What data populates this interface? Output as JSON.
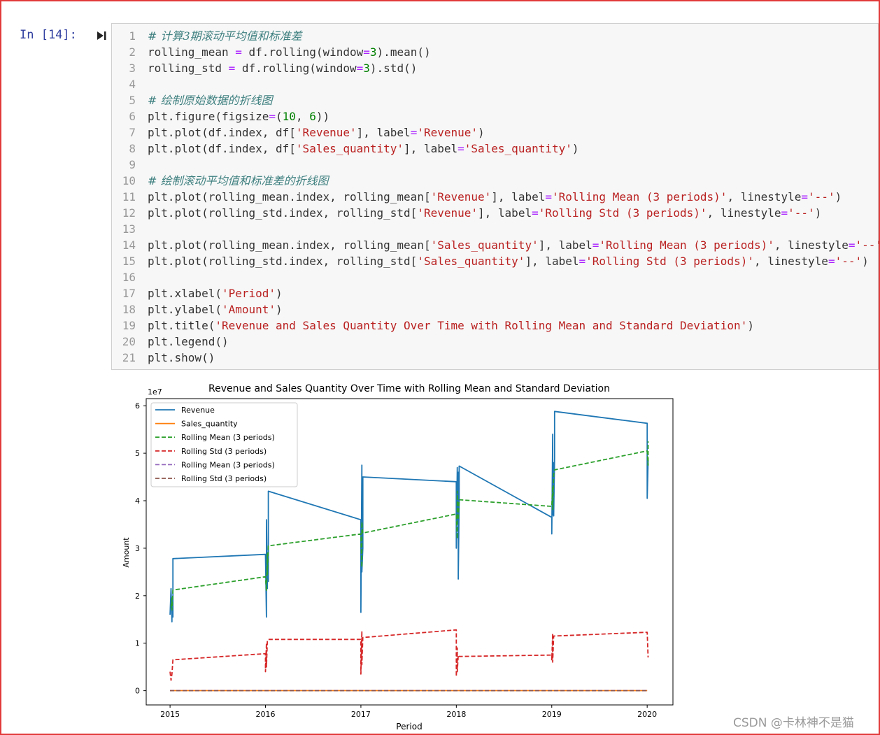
{
  "cell": {
    "prompt": "In  [14]:",
    "run_icon": "run-cell-icon",
    "line_numbers": [
      "1",
      "2",
      "3",
      "4",
      "5",
      "6",
      "7",
      "8",
      "9",
      "10",
      "11",
      "12",
      "13",
      "14",
      "15",
      "16",
      "17",
      "18",
      "19",
      "20",
      "21"
    ],
    "lines": [
      [
        {
          "t": "# 计算3期滚动平均值和标准差",
          "c": "comment"
        }
      ],
      [
        {
          "t": "rolling_mean "
        },
        {
          "t": "=",
          "c": "op"
        },
        {
          "t": " df.rolling(window"
        },
        {
          "t": "=",
          "c": "op"
        },
        {
          "t": "3",
          "c": "num"
        },
        {
          "t": ").mean()"
        }
      ],
      [
        {
          "t": "rolling_std "
        },
        {
          "t": "=",
          "c": "op"
        },
        {
          "t": " df.rolling(window"
        },
        {
          "t": "=",
          "c": "op"
        },
        {
          "t": "3",
          "c": "num"
        },
        {
          "t": ").std()"
        }
      ],
      [],
      [
        {
          "t": "# 绘制原始数据的折线图",
          "c": "comment"
        }
      ],
      [
        {
          "t": "plt.figure(figsize"
        },
        {
          "t": "=",
          "c": "op"
        },
        {
          "t": "("
        },
        {
          "t": "10",
          "c": "num"
        },
        {
          "t": ", "
        },
        {
          "t": "6",
          "c": "num"
        },
        {
          "t": "))"
        }
      ],
      [
        {
          "t": "plt.plot(df.index, df["
        },
        {
          "t": "'Revenue'",
          "c": "str"
        },
        {
          "t": "], label"
        },
        {
          "t": "=",
          "c": "op"
        },
        {
          "t": "'Revenue'",
          "c": "str"
        },
        {
          "t": ")"
        }
      ],
      [
        {
          "t": "plt.plot(df.index, df["
        },
        {
          "t": "'Sales_quantity'",
          "c": "str"
        },
        {
          "t": "], label"
        },
        {
          "t": "=",
          "c": "op"
        },
        {
          "t": "'Sales_quantity'",
          "c": "str"
        },
        {
          "t": ")"
        }
      ],
      [],
      [
        {
          "t": "# 绘制滚动平均值和标准差的折线图",
          "c": "comment"
        }
      ],
      [
        {
          "t": "plt.plot(rolling_mean.index, rolling_mean["
        },
        {
          "t": "'Revenue'",
          "c": "str"
        },
        {
          "t": "], label"
        },
        {
          "t": "=",
          "c": "op"
        },
        {
          "t": "'Rolling Mean (3 periods)'",
          "c": "str"
        },
        {
          "t": ", linestyle"
        },
        {
          "t": "=",
          "c": "op"
        },
        {
          "t": "'--'",
          "c": "str"
        },
        {
          "t": ")"
        }
      ],
      [
        {
          "t": "plt.plot(rolling_std.index, rolling_std["
        },
        {
          "t": "'Revenue'",
          "c": "str"
        },
        {
          "t": "], label"
        },
        {
          "t": "=",
          "c": "op"
        },
        {
          "t": "'Rolling Std (3 periods)'",
          "c": "str"
        },
        {
          "t": ", linestyle"
        },
        {
          "t": "=",
          "c": "op"
        },
        {
          "t": "'--'",
          "c": "str"
        },
        {
          "t": ")"
        }
      ],
      [],
      [
        {
          "t": "plt.plot(rolling_mean.index, rolling_mean["
        },
        {
          "t": "'Sales_quantity'",
          "c": "str"
        },
        {
          "t": "], label"
        },
        {
          "t": "=",
          "c": "op"
        },
        {
          "t": "'Rolling Mean (3 periods)'",
          "c": "str"
        },
        {
          "t": ", linestyle"
        },
        {
          "t": "=",
          "c": "op"
        },
        {
          "t": "'--'",
          "c": "str"
        },
        {
          "t": ")"
        }
      ],
      [
        {
          "t": "plt.plot(rolling_std.index, rolling_std["
        },
        {
          "t": "'Sales_quantity'",
          "c": "str"
        },
        {
          "t": "], label"
        },
        {
          "t": "=",
          "c": "op"
        },
        {
          "t": "'Rolling Std (3 periods)'",
          "c": "str"
        },
        {
          "t": ", linestyle"
        },
        {
          "t": "=",
          "c": "op"
        },
        {
          "t": "'--'",
          "c": "str"
        },
        {
          "t": ")"
        }
      ],
      [],
      [
        {
          "t": "plt.xlabel("
        },
        {
          "t": "'Period'",
          "c": "str"
        },
        {
          "t": ")"
        }
      ],
      [
        {
          "t": "plt.ylabel("
        },
        {
          "t": "'Amount'",
          "c": "str"
        },
        {
          "t": ")"
        }
      ],
      [
        {
          "t": "plt.title("
        },
        {
          "t": "'Revenue and Sales Quantity Over Time with Rolling Mean and Standard Deviation'",
          "c": "str"
        },
        {
          "t": ")"
        }
      ],
      [
        {
          "t": "plt.legend()"
        }
      ],
      [
        {
          "t": "plt.show()"
        }
      ]
    ]
  },
  "chart_data": {
    "type": "line",
    "title": "Revenue and Sales Quantity Over Time with Rolling Mean and Standard Deviation",
    "xlabel": "Period",
    "ylabel": "Amount",
    "y_offset_label": "1e7",
    "xlim": [
      2014.75,
      2020.27
    ],
    "ylim": [
      -0.3,
      6.15
    ],
    "x_ticks": [
      2015,
      2016,
      2017,
      2018,
      2019,
      2020
    ],
    "x_tick_labels": [
      "2015",
      "2016",
      "2017",
      "2018",
      "2019",
      "2020"
    ],
    "y_ticks": [
      0,
      1,
      2,
      3,
      4,
      5,
      6
    ],
    "y_tick_labels": [
      "0",
      "1",
      "2",
      "3",
      "4",
      "5",
      "6"
    ],
    "grid": false,
    "legend_position": "upper-left",
    "series": [
      {
        "name": "Revenue",
        "color": "#1f77b4",
        "dash": false,
        "x": [
          2015.0,
          2015.01,
          2015.02,
          2015.02,
          2015.03,
          2015.03,
          2016.0,
          2016.01,
          2016.01,
          2016.02,
          2016.02,
          2016.03,
          2016.03,
          2017.0,
          2017.0,
          2017.01,
          2017.01,
          2017.02,
          2017.02,
          2018.0,
          2018.0,
          2018.01,
          2018.01,
          2018.02,
          2018.02,
          2018.03,
          2018.03,
          2019.0,
          2019.0,
          2019.01,
          2019.01,
          2019.02,
          2019.02,
          2019.03,
          2019.03,
          2020.0,
          2020.0,
          2020.01
        ],
        "y": [
          1.6,
          2.15,
          1.45,
          1.9,
          1.55,
          2.78,
          2.87,
          1.55,
          3.6,
          2.15,
          2.9,
          2.3,
          4.2,
          3.6,
          1.65,
          4.75,
          2.5,
          3.0,
          4.5,
          4.4,
          3.0,
          4.7,
          3.6,
          4.6,
          2.35,
          4.0,
          4.73,
          3.65,
          3.3,
          5.4,
          3.7,
          4.8,
          3.68,
          4.9,
          5.88,
          5.63,
          4.05,
          4.85
        ]
      },
      {
        "name": "Sales_quantity",
        "color": "#ff7f0e",
        "dash": false,
        "x": [
          2015.0,
          2020.0
        ],
        "y": [
          0.002,
          0.002
        ]
      },
      {
        "name": "Rolling Mean (3 periods)",
        "color": "#2ca02c",
        "dash": true,
        "x": [
          2015.01,
          2015.02,
          2015.02,
          2015.03,
          2016.0,
          2016.01,
          2016.02,
          2016.02,
          2016.03,
          2017.0,
          2017.01,
          2017.01,
          2017.02,
          2018.0,
          2018.01,
          2018.01,
          2018.02,
          2018.03,
          2019.0,
          2019.01,
          2019.01,
          2019.02,
          2019.03,
          2020.0,
          2020.01,
          2020.01
        ],
        "y": [
          1.75,
          1.95,
          1.7,
          2.12,
          2.4,
          2.1,
          2.9,
          2.45,
          3.05,
          3.3,
          2.6,
          3.55,
          3.32,
          3.72,
          3.2,
          4.2,
          3.6,
          4.02,
          3.88,
          4.3,
          3.8,
          4.55,
          4.65,
          5.05,
          4.75,
          5.25
        ]
      },
      {
        "name": "Rolling Std (3 periods)",
        "color": "#d62728",
        "dash": true,
        "x": [
          2015.0,
          2015.01,
          2015.02,
          2015.03,
          2016.0,
          2016.0,
          2016.01,
          2016.01,
          2016.02,
          2016.03,
          2017.0,
          2017.0,
          2017.01,
          2017.01,
          2017.02,
          2018.0,
          2018.0,
          2018.01,
          2018.01,
          2018.02,
          2018.03,
          2019.0,
          2019.0,
          2019.01,
          2019.01,
          2019.02,
          2020.0,
          2020.01
        ],
        "y": [
          0.4,
          0.22,
          0.35,
          0.65,
          0.78,
          0.4,
          1.0,
          0.5,
          1.05,
          1.08,
          1.08,
          0.35,
          1.25,
          0.55,
          1.12,
          1.28,
          0.3,
          0.9,
          0.4,
          0.75,
          0.72,
          0.75,
          0.65,
          1.2,
          0.6,
          1.15,
          1.23,
          0.7
        ]
      },
      {
        "name": "Rolling Mean (3 periods)",
        "color": "#9467bd",
        "dash": true,
        "x": [
          2015.0,
          2020.0
        ],
        "y": [
          0.002,
          0.002
        ]
      },
      {
        "name": "Rolling Std (3 periods)",
        "color": "#8c564b",
        "dash": true,
        "x": [
          2015.0,
          2020.0
        ],
        "y": [
          0.001,
          0.001
        ]
      }
    ]
  },
  "watermark": "CSDN @卡林神不是猫"
}
